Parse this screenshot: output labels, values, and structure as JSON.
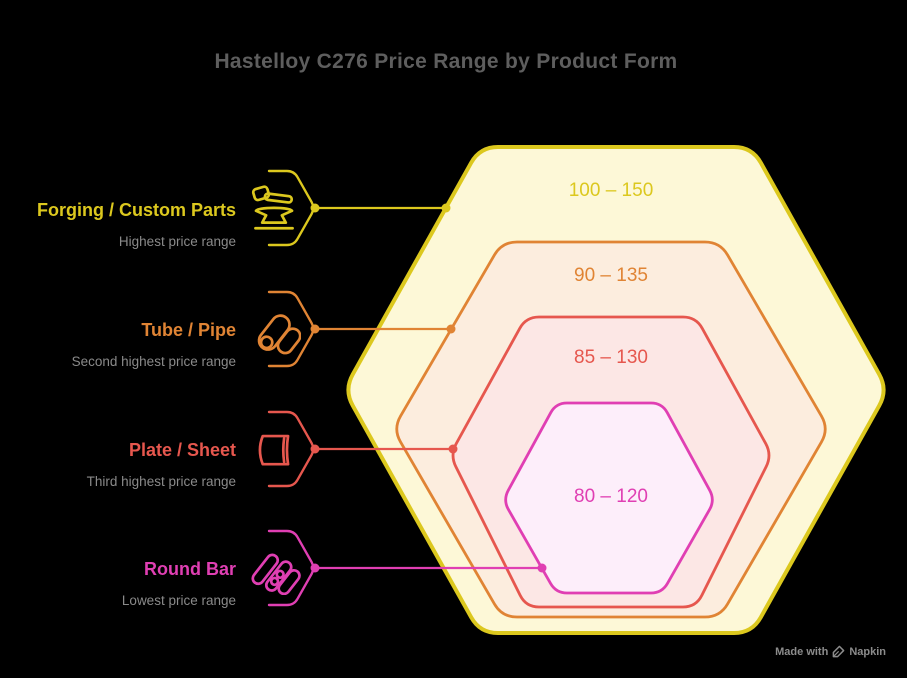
{
  "title": "Hastelloy C276 Price Range by Product Form",
  "watermark": {
    "prefix": "Made with",
    "brand": "Napkin"
  },
  "colors": {
    "background": "#000000",
    "title": "#5e5e5e",
    "sublabel": "#8a8a8a",
    "watermark": "#8c8c8c"
  },
  "chart_data": {
    "type": "nested-hexagons",
    "title": "Hastelloy C276 Price Range by Product Form",
    "legend_position": "left",
    "order": "outermost ring = highest price range",
    "rings": [
      {
        "rank": 1,
        "label": "Forging / Custom Parts",
        "sublabel": "Highest price range",
        "range_text": "100 – 150",
        "range_min": 100,
        "range_max": 150,
        "stroke": "#dcc81e",
        "fill": "#fdf8d7",
        "icon": "forging-icon"
      },
      {
        "rank": 2,
        "label": "Tube / Pipe",
        "sublabel": "Second highest price range",
        "range_text": "90 – 135",
        "range_min": 90,
        "range_max": 135,
        "stroke": "#e08434",
        "fill": "#fcedde",
        "icon": "tube-pipe-icon"
      },
      {
        "rank": 3,
        "label": "Plate / Sheet",
        "sublabel": "Third highest price range",
        "range_text": "85 – 130",
        "range_min": 85,
        "range_max": 130,
        "stroke": "#e6574e",
        "fill": "#fce7e5",
        "icon": "plate-sheet-icon"
      },
      {
        "rank": 4,
        "label": "Round Bar",
        "sublabel": "Lowest price range",
        "range_text": "80 – 120",
        "range_min": 80,
        "range_max": 120,
        "stroke": "#e03fb3",
        "fill": "#fdeefa",
        "icon": "round-bar-icon"
      }
    ]
  }
}
